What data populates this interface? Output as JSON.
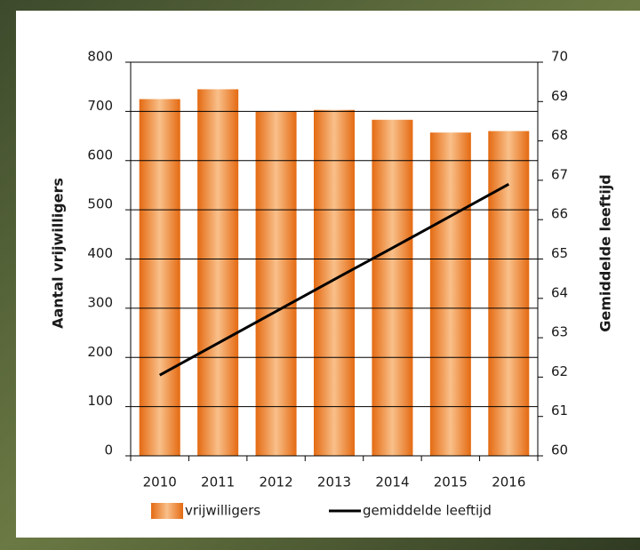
{
  "chart_data": {
    "type": "bar",
    "categories": [
      "2010",
      "2011",
      "2012",
      "2013",
      "2014",
      "2015",
      "2016"
    ],
    "y_label": "Aantal vrijwilligers",
    "y2_label": "Gemiddelde leeftijd",
    "series": [
      {
        "name": "vrijwilligers",
        "type": "bar",
        "color": "#ec7a1e",
        "values": [
          725,
          745,
          700,
          703,
          683,
          657,
          660
        ]
      },
      {
        "name": "gemiddelde leeftijd",
        "type": "line",
        "axis": "y2",
        "color": "#000000",
        "values": [
          62.05,
          62.86,
          63.67,
          64.48,
          65.28,
          66.09,
          66.9
        ]
      }
    ],
    "ylim": [
      0,
      800
    ],
    "yticks": [
      0,
      100,
      200,
      300,
      400,
      500,
      600,
      700,
      800
    ],
    "y2lim": [
      60,
      70
    ],
    "y2ticks": [
      60,
      61,
      62,
      63,
      64,
      65,
      66,
      67,
      68,
      69,
      70
    ],
    "grid": true,
    "legend": "bottom"
  }
}
